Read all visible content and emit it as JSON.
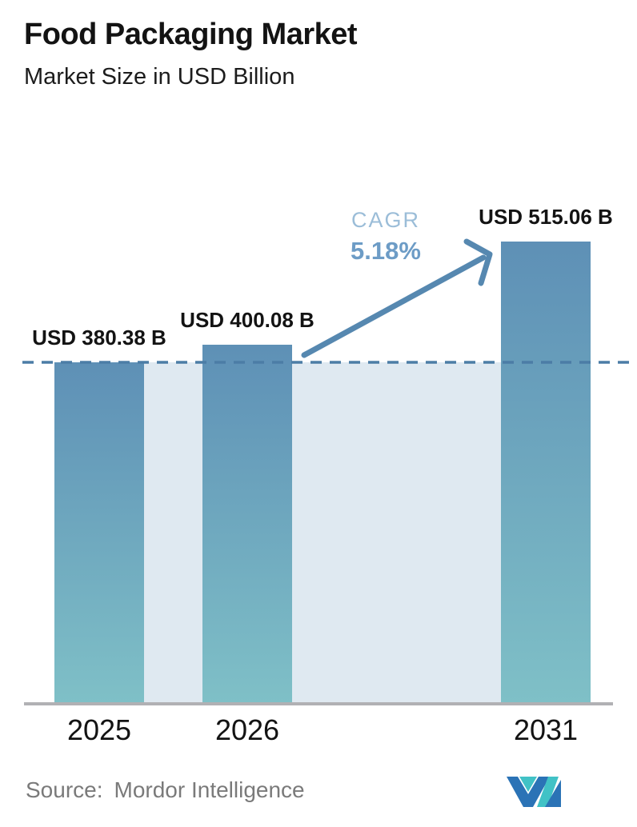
{
  "header": {
    "title": "Food Packaging Market",
    "subtitle": "Market Size in USD Billion"
  },
  "chart_data": {
    "type": "bar",
    "title": "Food Packaging Market",
    "subtitle": "Market Size in USD Billion",
    "unit": "USD Billion",
    "categories": [
      "2025",
      "2026",
      "2031"
    ],
    "values": [
      380.38,
      400.08,
      515.06
    ],
    "bar_labels": [
      "USD 380.38 B",
      "USD 400.08 B",
      "USD 515.06 B"
    ],
    "cagr": {
      "label": "CAGR",
      "value": "5.18%"
    },
    "annotations": {
      "dashed_reference_value": 380.38,
      "arrow": "from 2026 bar to 2031 bar"
    },
    "ylim": [
      0,
      515.06
    ],
    "grid": false,
    "legend": false
  },
  "colors": {
    "bar_top": "#5e90b6",
    "bar_bottom": "#7fc0c7",
    "band": "#dfe9f1",
    "dashed_line": "#4c7da6",
    "arrow": "#5688b0",
    "cagr_label": "#9bbdd8",
    "cagr_value": "#6d9cc6",
    "axis": "#b1b1b4",
    "text": "#131313",
    "source_text": "#7a7a7a",
    "logo_blue": "#2b73b6",
    "logo_teal": "#41c2c6"
  },
  "footer": {
    "source_label": "Source:",
    "source_value": "Mordor Intelligence",
    "logo_name": "mordor-intelligence-logo"
  }
}
